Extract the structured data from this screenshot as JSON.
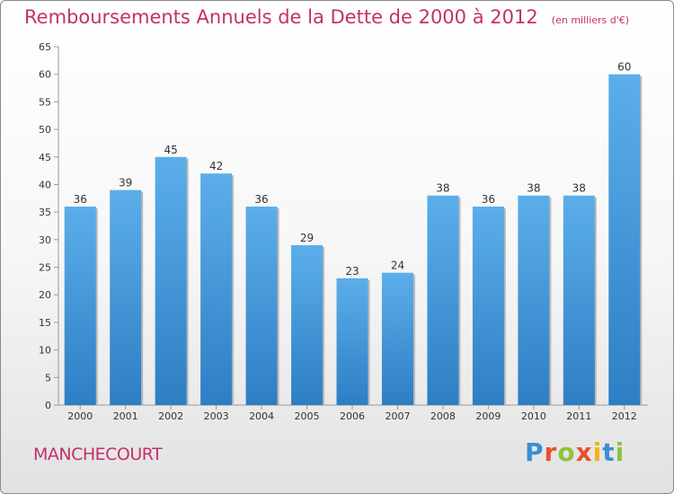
{
  "header": {
    "title": "Remboursements Annuels de la Dette de 2000 à 2012",
    "subtitle": "(en milliers d'€)"
  },
  "footer": {
    "commune": "MANCHECOURT",
    "logo_text": "Proxiti",
    "logo_colors": [
      "#3a8fd6",
      "#e8502a",
      "#8cc43c",
      "#e8502a",
      "#f2b315",
      "#3a8fd6",
      "#8cc43c"
    ]
  },
  "chart_data": {
    "type": "bar",
    "categories": [
      "2000",
      "2001",
      "2002",
      "2003",
      "2004",
      "2005",
      "2006",
      "2007",
      "2008",
      "2009",
      "2010",
      "2011",
      "2012"
    ],
    "values": [
      36,
      39,
      45,
      42,
      36,
      29,
      23,
      24,
      38,
      36,
      38,
      38,
      60
    ],
    "title": "Remboursements Annuels de la Dette de 2000 à 2012",
    "xlabel": "",
    "ylabel": "",
    "ylim": [
      0,
      65
    ],
    "yticks": [
      0,
      5,
      10,
      15,
      20,
      25,
      30,
      35,
      40,
      45,
      50,
      55,
      60,
      65
    ],
    "grid": false,
    "data_labels": true,
    "bar_color_top": "#5baeea",
    "bar_color_bottom": "#2e7ec4"
  }
}
